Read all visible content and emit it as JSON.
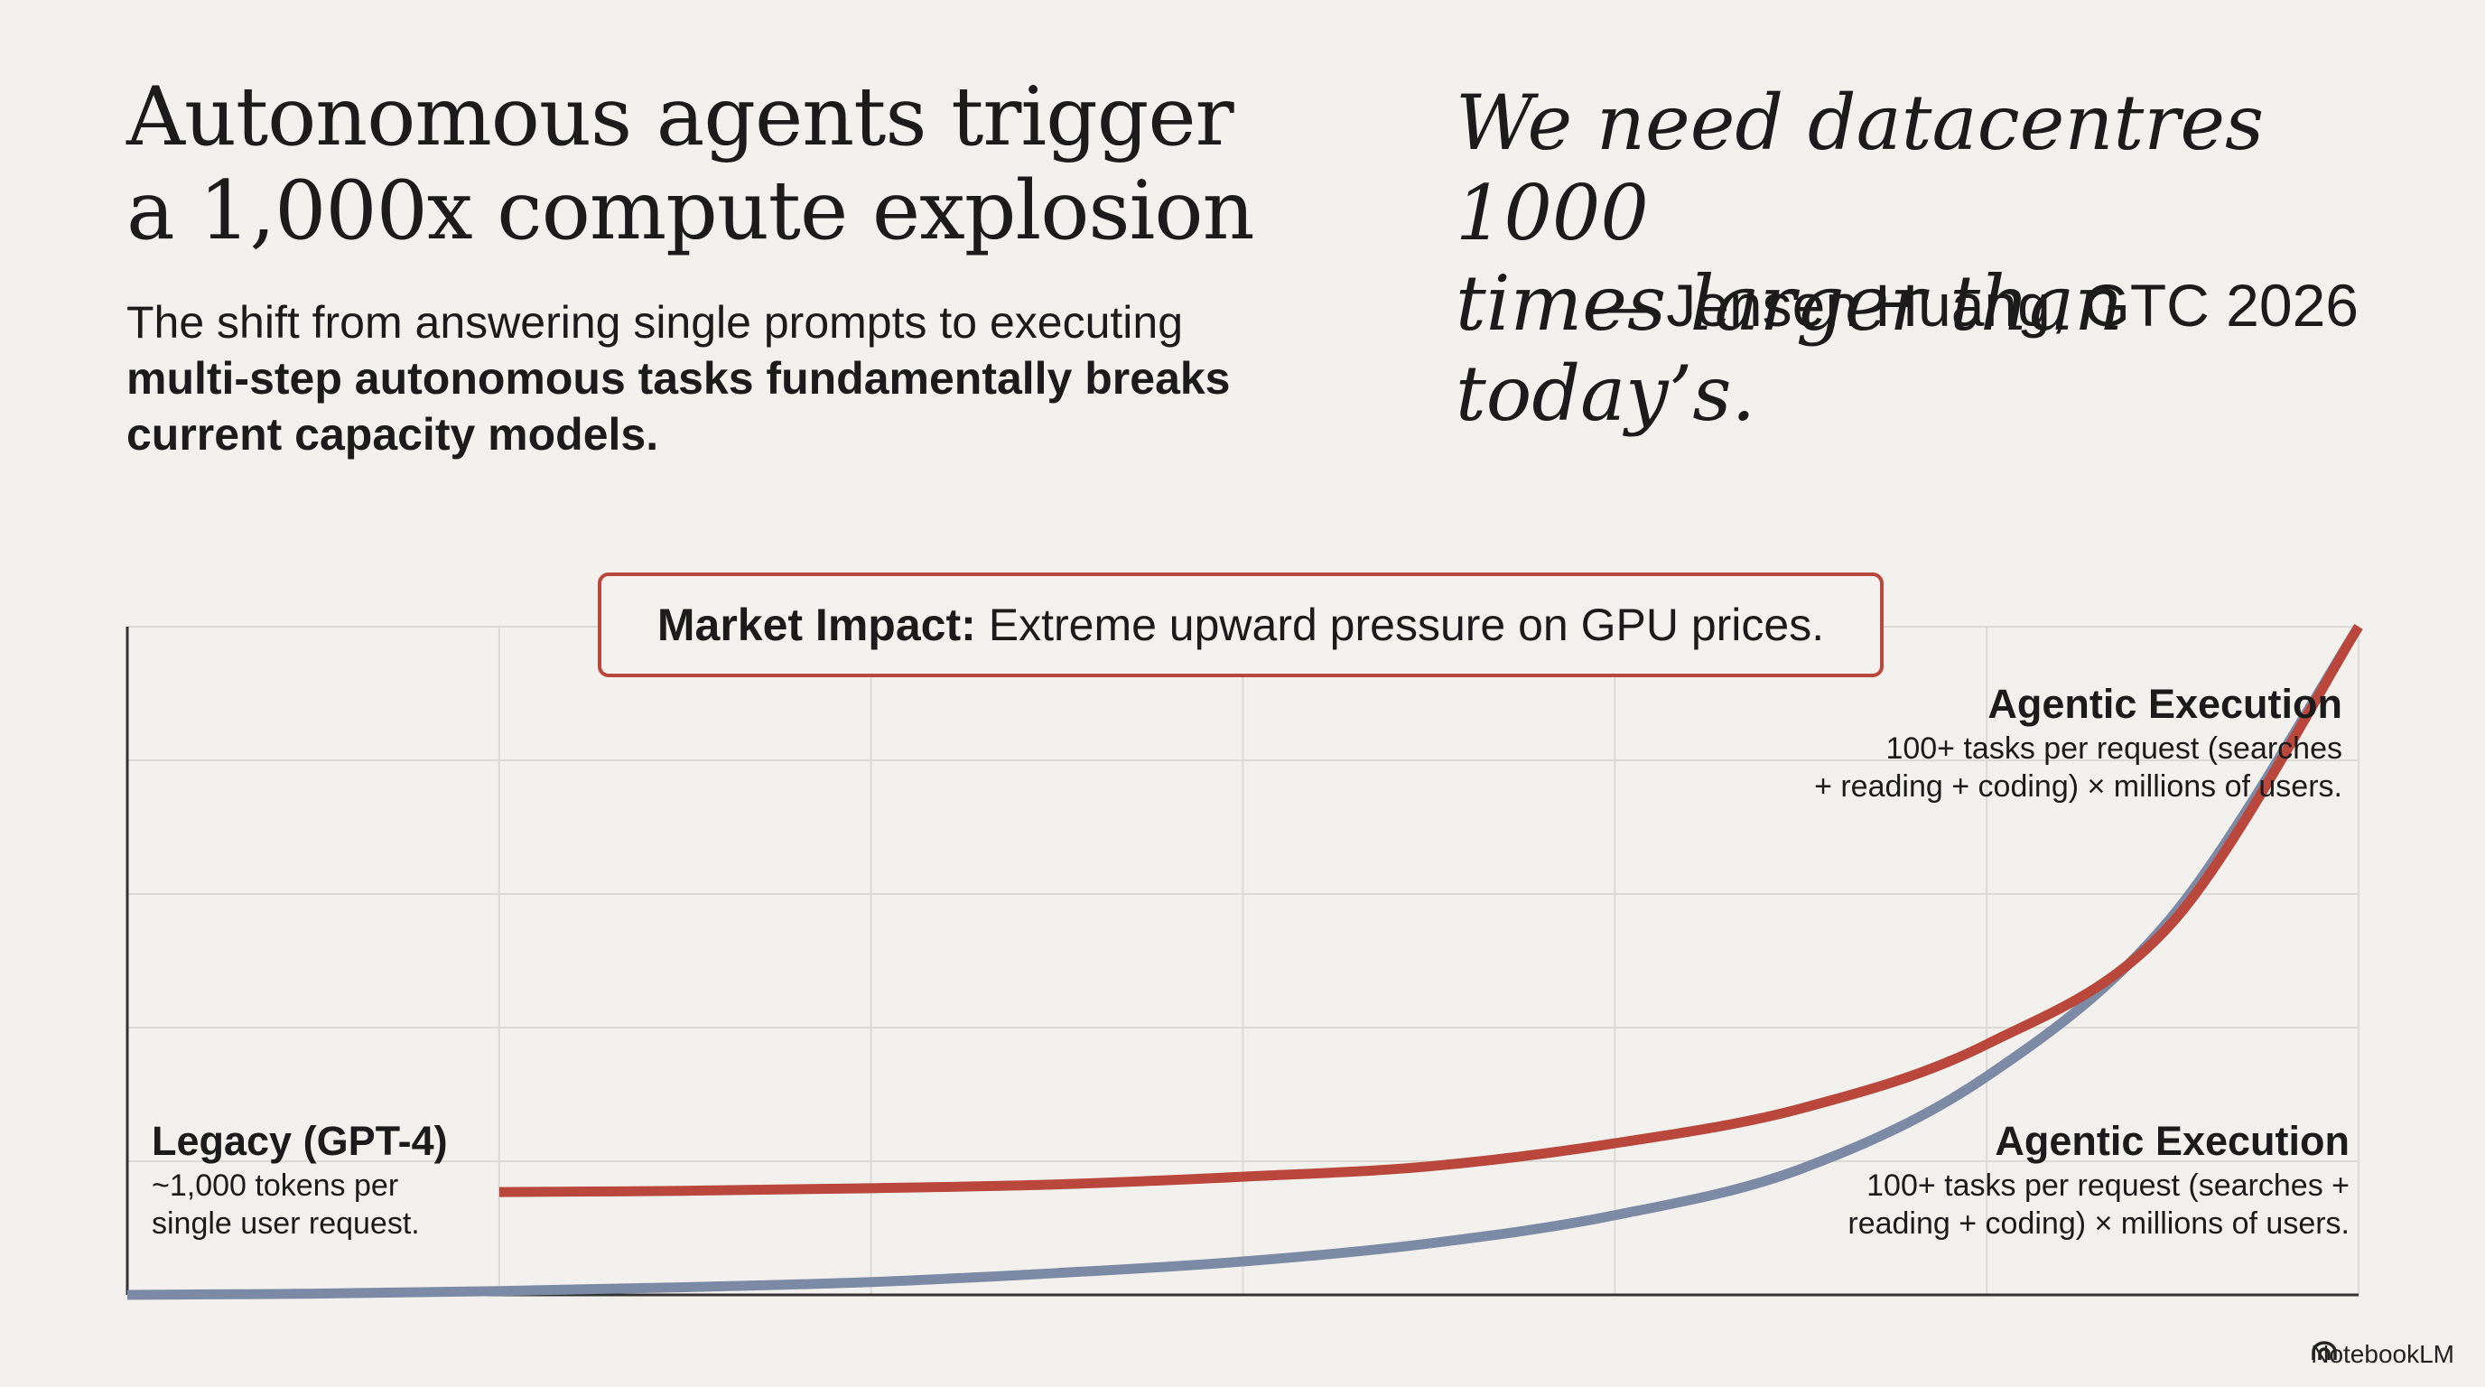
{
  "title": {
    "line1": "Autonomous agents trigger",
    "line2": "a 1,000x compute explosion"
  },
  "subtitle": {
    "text": "The shift from answering single prompts to executing ",
    "bold": "multi-step autonomous tasks fundamentally breaks current capacity models."
  },
  "quote": {
    "line1": "We need datacentres 1000",
    "line2": "times larger than today’s.",
    "attribution": "— Jensen Huang, GTC 2026"
  },
  "impact": {
    "label": "Market Impact:",
    "text": "Extreme upward pressure on GPU prices."
  },
  "annotations": {
    "legacy": {
      "title": "Legacy (GPT-4)",
      "desc1": "~1,000 tokens per",
      "desc2": "single user request."
    },
    "agentic_top": {
      "title": "Agentic Execution",
      "desc1": "100+ tasks per request (searches",
      "desc2": "+ reading + coding) × millions of users."
    },
    "agentic_bottom": {
      "title": "Agentic Execution",
      "desc1": "100+ tasks per request (searches +",
      "desc2": "reading + coding) × millions of users."
    }
  },
  "brand": {
    "name": "NotebookLM",
    "icon": "notebooklm-icon"
  },
  "colors": {
    "red": "#b9473b",
    "blue": "#7d8aa6",
    "grid": "#dcdad5",
    "axis": "#333333"
  },
  "chart_data": {
    "type": "line",
    "title": "",
    "xlabel": "",
    "ylabel": "",
    "grid": true,
    "x": [
      0,
      0.5,
      1,
      1.5,
      2,
      2.5,
      3,
      3.5,
      4,
      4.5,
      5,
      5.5,
      6
    ],
    "xlim": [
      0,
      6
    ],
    "ylim": [
      0,
      5.2
    ],
    "series": [
      {
        "name": "Agentic Execution (red)",
        "color": "#b9473b",
        "x_start": 1,
        "values": [
          null,
          null,
          0.8,
          0.81,
          0.83,
          0.86,
          0.92,
          1.0,
          1.18,
          1.45,
          1.95,
          2.9,
          5.2
        ]
      },
      {
        "name": "Agentic Execution (blue)",
        "color": "#7d8aa6",
        "x_start": 0,
        "values": [
          0.0,
          0.01,
          0.03,
          0.06,
          0.1,
          0.17,
          0.26,
          0.4,
          0.62,
          0.98,
          1.7,
          2.95,
          5.2
        ]
      }
    ]
  }
}
